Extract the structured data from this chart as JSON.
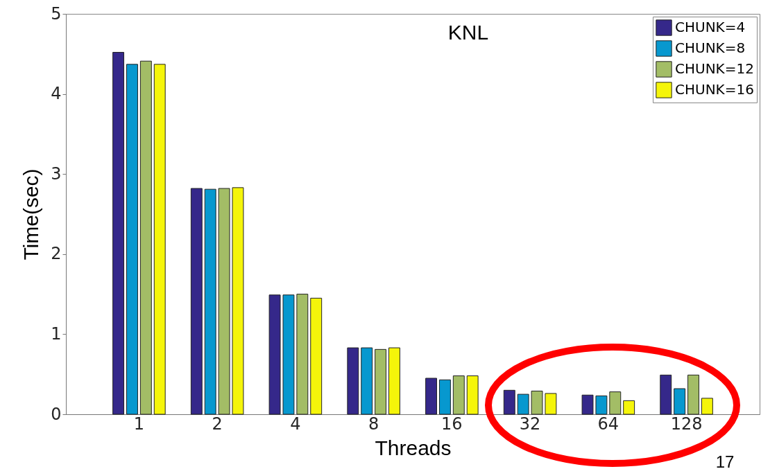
{
  "chart_data": {
    "type": "bar",
    "xlabel": "Threads",
    "ylabel": "Time(sec)",
    "categories": [
      "1",
      "2",
      "4",
      "8",
      "16",
      "32",
      "64",
      "128"
    ],
    "series": [
      {
        "name": "CHUNK=4",
        "color": "#35288a",
        "values": [
          4.52,
          2.82,
          1.49,
          0.83,
          0.45,
          0.3,
          0.24,
          0.49
        ]
      },
      {
        "name": "CHUNK=8",
        "color": "#0798cf",
        "values": [
          4.37,
          2.81,
          1.49,
          0.83,
          0.43,
          0.25,
          0.23,
          0.32
        ]
      },
      {
        "name": "CHUNK=12",
        "color": "#a3bd66",
        "values": [
          4.41,
          2.82,
          1.5,
          0.81,
          0.48,
          0.29,
          0.28,
          0.49
        ]
      },
      {
        "name": "CHUNK=16",
        "color": "#f5f50a",
        "values": [
          4.37,
          2.83,
          1.45,
          0.83,
          0.48,
          0.26,
          0.17,
          0.2
        ]
      }
    ],
    "ylim": [
      0,
      5
    ],
    "yticks": [
      0,
      1,
      2,
      3,
      4,
      5
    ],
    "annotations": [
      "KNL",
      "17"
    ],
    "legend": "top right",
    "grid": false
  }
}
